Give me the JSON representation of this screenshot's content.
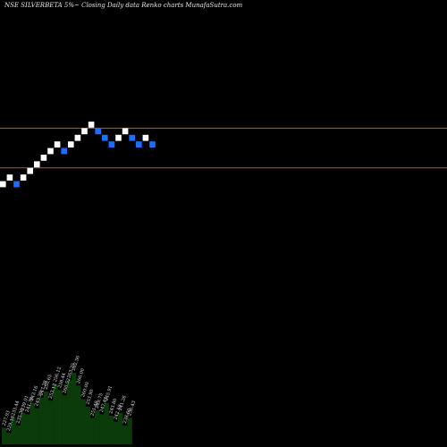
{
  "chart_data": {
    "type": "renko",
    "title": "NSE SILVERBETA 5%~  Closing Daily data  Renko  charts MunafaSutra.com",
    "price_start": 227.0,
    "box_step": 4.0,
    "bricks": [
      {
        "dir": "up"
      },
      {
        "dir": "up"
      },
      {
        "dir": "down"
      },
      {
        "dir": "up"
      },
      {
        "dir": "up"
      },
      {
        "dir": "up"
      },
      {
        "dir": "up"
      },
      {
        "dir": "up"
      },
      {
        "dir": "up"
      },
      {
        "dir": "down"
      },
      {
        "dir": "up"
      },
      {
        "dir": "up"
      },
      {
        "dir": "up"
      },
      {
        "dir": "up"
      },
      {
        "dir": "down"
      },
      {
        "dir": "down"
      },
      {
        "dir": "down"
      },
      {
        "dir": "up"
      },
      {
        "dir": "up"
      },
      {
        "dir": "down"
      },
      {
        "dir": "down"
      },
      {
        "dir": "up"
      },
      {
        "dir": "down"
      }
    ],
    "reference_lines": [
      {
        "value": 263.0,
        "color": "#c0571d"
      },
      {
        "value": 239.0,
        "color": "#c0571d"
      }
    ],
    "up_color": "#ffffff",
    "down_color": "#1a6fff",
    "volume": {
      "color": "#0b3b0b",
      "values": [
        22,
        15,
        35,
        25,
        42,
        40,
        55,
        48,
        62,
        70,
        58,
        80,
        72,
        65,
        85,
        95,
        78,
        60,
        50,
        35,
        45,
        40,
        55,
        38,
        30,
        42,
        25,
        35
      ],
      "labels": [
        "227.93",
        "229.18",
        "233.44",
        "235.36",
        "239.01",
        "241.30",
        "243.16",
        "245.20",
        "247.38",
        "250.65",
        "253.12",
        "256.12",
        "258.44",
        "260.52",
        "263.75",
        "262.56",
        "266.00",
        "260.00",
        "253.90",
        "251.48",
        "249.75",
        "247.43",
        "245.91",
        "243.80",
        "242.10",
        "241.26",
        "238.60",
        "236.43"
      ]
    }
  }
}
